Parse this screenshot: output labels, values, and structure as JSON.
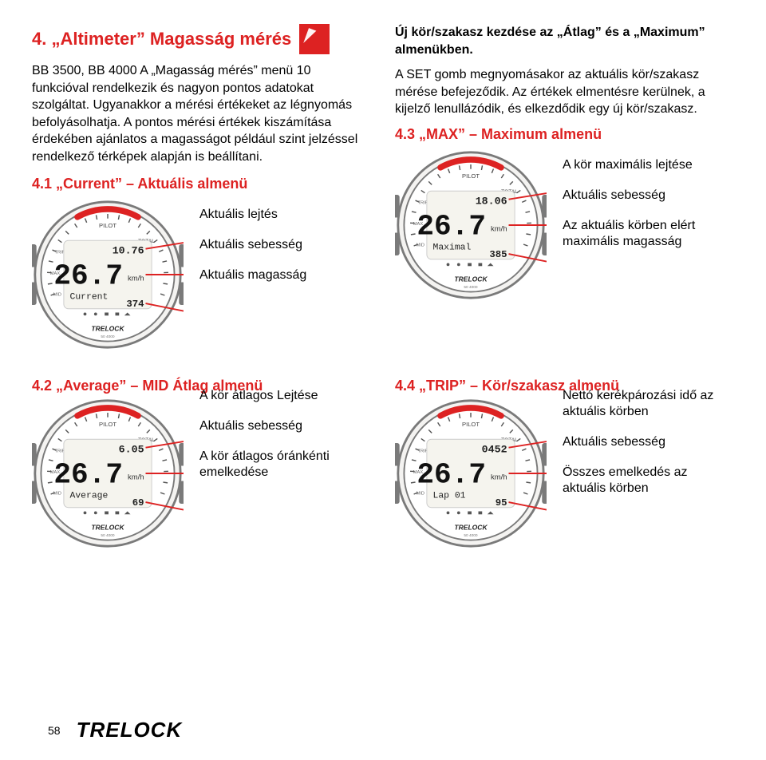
{
  "colors": {
    "accent": "#d22",
    "text": "#000000",
    "watch_shell": "#f4f3f1",
    "watch_outline": "#7a7a7a",
    "lcd_bg": "#f5f4ee",
    "red_bar": "#d22"
  },
  "header": {
    "title": "4. „Altimeter” Magasság mérés"
  },
  "intro": {
    "p1": "BB 3500, BB 4000 A „Magasság mérés” menü 10 funkcióval rendelkezik és nagyon pontos adatokat szolgáltat. Ugyanakkor a mérési értékeket az légnyomás befolyásolhatja. A pontos mérési értékek kiszámítása érdekében ajánlatos a magasságot például szint jelzéssel rendelkező térképek alapján is beállítani."
  },
  "sec41": {
    "title": "4.1 „Current” – Aktuális almenü",
    "callouts": [
      "Aktuális lejtés",
      "Aktuális sebesség",
      "Aktuális magasság"
    ],
    "display": {
      "top_small": "10.76",
      "main": "26.7",
      "unit": "km/h",
      "label": "Current",
      "bottom_small": "374"
    }
  },
  "right_intro": {
    "head": "Új kör/szakasz kezdése az „Átlag” és  a „Maximum” almenükben.",
    "p": "A SET gomb megnyomásakor az aktuális kör/szakasz mérése befejeződik. Az értékek elmentésre kerülnek, a kijelző lenullázódik, és elkezdődik egy új kör/szakasz."
  },
  "sec43": {
    "title": "4.3 „MAX” – Maximum almenü",
    "callouts": [
      "A kör maximális lejtése",
      "Aktuális sebesség",
      "Az aktuális körben elért maximális magasság"
    ],
    "display": {
      "top_small": "18.06",
      "main": "26.7",
      "unit": "km/h",
      "label": "Maximal",
      "bottom_small": "385"
    }
  },
  "sec42": {
    "title": "4.2 „Average” – MID Átlag almenü",
    "callouts": [
      "A kör átlagos Lejtése",
      "Aktuális sebesség",
      "A kör átlagos óránkénti emelkedése"
    ],
    "display": {
      "top_small": "6.05",
      "main": "26.7",
      "unit": "km/h",
      "label": "Average",
      "bottom_small": "69"
    }
  },
  "sec44": {
    "title": "4.4 „TRIP” – Kör/szakasz almenü",
    "callouts": [
      "Nettó kerékpározási idő az aktuális körben",
      "Aktuális sebesség",
      "Összes emelkedés az aktuális körben"
    ],
    "display": {
      "top_small": "0452",
      "main": "26.7",
      "unit": "km/h",
      "label": "Lap 01",
      "bottom_small": "95"
    }
  },
  "footer": {
    "page": "58",
    "brand": "TRELOCK"
  },
  "watch_style": {
    "title_top": "PILOT",
    "title_right": "TOTAL",
    "scale_left": [
      "TRIP",
      "MAX",
      "MID"
    ],
    "brand_bottom": "TRELOCK"
  }
}
